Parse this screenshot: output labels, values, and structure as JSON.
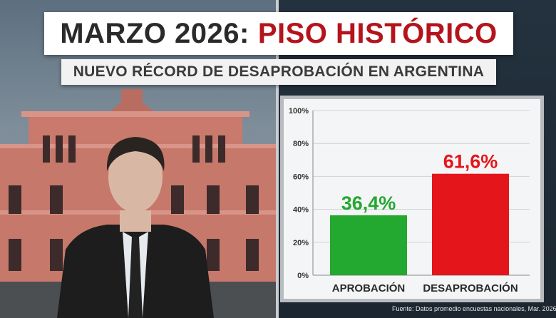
{
  "headline": {
    "part1": "MARZO 2026:",
    "part2": "PISO HISTÓRICO"
  },
  "subheadline": "NUEVO RÉCORD DE DESAPROBACIÓN EN ARGENTINA",
  "colors": {
    "approval": "#23a830",
    "disapproval": "#e4161b",
    "headline_red": "#b4141b"
  },
  "chart_data": {
    "type": "bar",
    "categories": [
      "APROBACIÓN",
      "DESAPROBACIÓN"
    ],
    "values": [
      36.4,
      61.6
    ],
    "value_labels": [
      "36,4%",
      "61,6%"
    ],
    "ylim": [
      0,
      100
    ],
    "yticks": [
      0,
      20,
      40,
      60,
      80,
      100
    ],
    "ytick_labels": [
      "0%",
      "20%",
      "40%",
      "60%",
      "80%",
      "100%"
    ],
    "grid": true
  },
  "source": "Fuente: Datos promedio encuestas nacionales, Mar. 2026"
}
